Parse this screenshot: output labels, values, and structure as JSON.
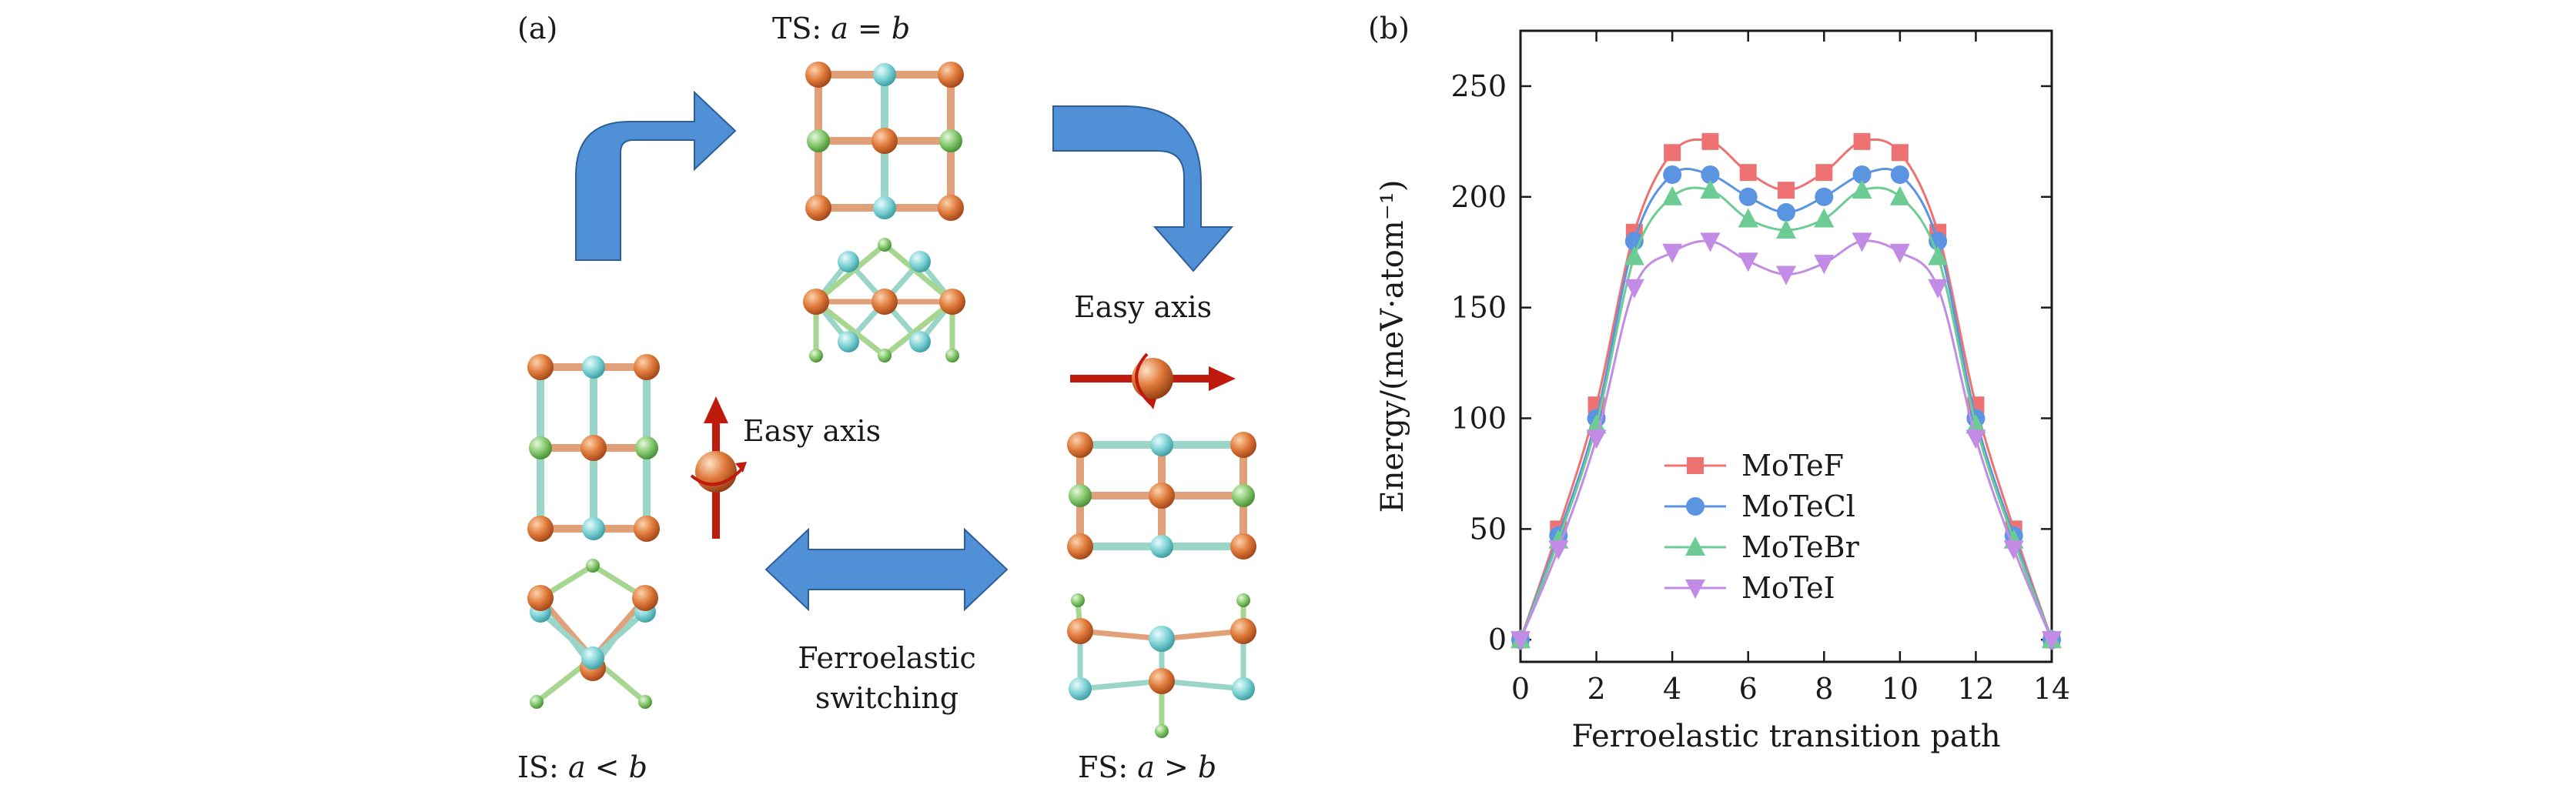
{
  "panel_a": {
    "label": "(a)",
    "ts": {
      "prefix": "TS: ",
      "relation": "a = b"
    },
    "is": {
      "prefix": "IS: ",
      "relation": "a < b"
    },
    "fs": {
      "prefix": "FS: ",
      "relation": "a > b"
    },
    "easy_axis_left": "Easy axis",
    "easy_axis_right": "Easy axis",
    "switching_line1": "Ferroelastic",
    "switching_line2": "switching",
    "colors": {
      "mo": "#e07a3a",
      "te": "#7fd3d6",
      "halogen": "#86c96e",
      "arrow_blue": "#4f90d6",
      "spin_red": "#c0190e"
    }
  },
  "panel_b": {
    "label": "(b)"
  },
  "chart_data": {
    "type": "line",
    "title": "",
    "xlabel": "Ferroelastic transition path",
    "ylabel": "Energy/(meV·atom⁻¹)",
    "xlim": [
      0,
      14
    ],
    "ylim": [
      -10,
      275
    ],
    "xticks": [
      0,
      2,
      4,
      6,
      8,
      10,
      12,
      14
    ],
    "yticks": [
      0,
      50,
      100,
      150,
      200,
      250
    ],
    "legend_position": "center-left",
    "series": [
      {
        "name": "MoTeF",
        "marker": "square",
        "color": "#ee7272",
        "x": [
          0,
          1,
          2,
          3,
          4,
          5,
          6,
          7,
          8,
          9,
          10,
          11,
          12,
          13,
          14
        ],
        "y": [
          0,
          50,
          106,
          184,
          220,
          225,
          211,
          203,
          211,
          225,
          220,
          184,
          106,
          50,
          0
        ]
      },
      {
        "name": "MoTeCl",
        "marker": "circle",
        "color": "#5b94e0",
        "x": [
          0,
          1,
          2,
          3,
          4,
          5,
          6,
          7,
          8,
          9,
          10,
          11,
          12,
          13,
          14
        ],
        "y": [
          0,
          47,
          100,
          180,
          210,
          210,
          200,
          193,
          200,
          210,
          210,
          180,
          100,
          47,
          0
        ]
      },
      {
        "name": "MoTeBr",
        "marker": "triangle-up",
        "color": "#6ccc94",
        "x": [
          0,
          1,
          2,
          3,
          4,
          5,
          6,
          7,
          8,
          9,
          10,
          11,
          12,
          13,
          14
        ],
        "y": [
          0,
          45,
          97,
          173,
          200,
          203,
          190,
          185,
          190,
          203,
          200,
          173,
          97,
          45,
          0
        ]
      },
      {
        "name": "MoTeI",
        "marker": "triangle-down",
        "color": "#c28be6",
        "x": [
          0,
          1,
          2,
          3,
          4,
          5,
          6,
          7,
          8,
          9,
          10,
          11,
          12,
          13,
          14
        ],
        "y": [
          0,
          41,
          91,
          159,
          175,
          180,
          171,
          165,
          170,
          180,
          175,
          159,
          91,
          41,
          0
        ]
      }
    ]
  }
}
